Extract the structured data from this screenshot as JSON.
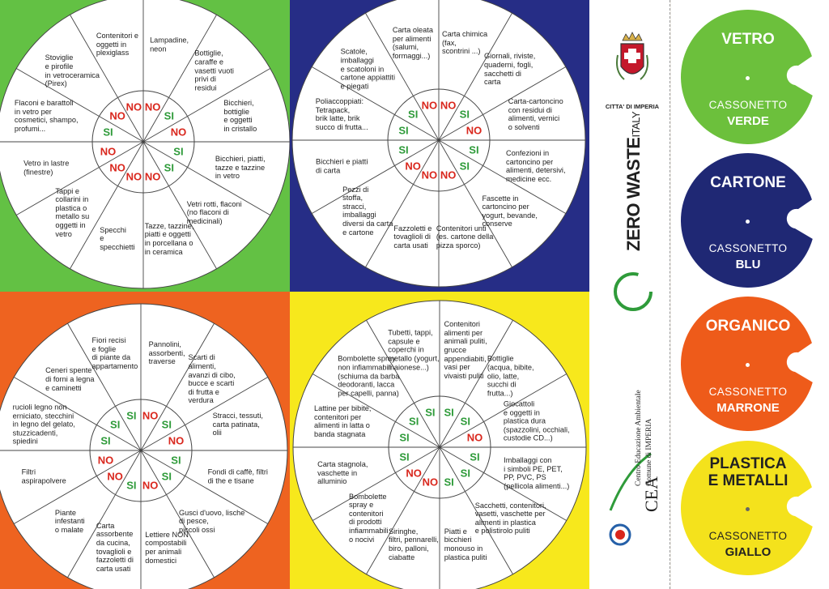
{
  "wheels": [
    {
      "id": "green",
      "color": "#63c144",
      "sectors": [
        {
          "text": "Lampadine,\nneon",
          "sign": "NO"
        },
        {
          "text": "Bottiglie,\ncaraffe e\nvasetti vuoti\nprivi di\nresidui",
          "sign": "SI"
        },
        {
          "text": "Bicchieri,\nbottiglie\ne oggetti\nin cristallo",
          "sign": "NO"
        },
        {
          "text": "Bicchieri, piatti,\ntazze e tazzine\nin vetro",
          "sign": "SI"
        },
        {
          "text": "Vetri rotti, flaconi\n(no flaconi di\nmedicinali)",
          "sign": "SI"
        },
        {
          "text": "Tazze, tazzine,\npiatti e oggetti\nin porcellana o\nin ceramica",
          "sign": "NO"
        },
        {
          "text": "Specchi\ne\nspecchietti",
          "sign": "NO"
        },
        {
          "text": "Tappi e\ncollarini in\nplastica o\nmetallo su\noggetti in\nvetro",
          "sign": "NO"
        },
        {
          "text": "Vetro in lastre\n(finestre)",
          "sign": "NO"
        },
        {
          "text": "Flaconi e barattoli\nin vetro per\ncosmetici, shampo,\nprofumi...",
          "sign": "SI"
        },
        {
          "text": "Stoviglie\ne pirofile\nin vetroceramica\n(Pirex)",
          "sign": "NO"
        },
        {
          "text": "Contenitori e\noggetti in\nplexiglass",
          "sign": "NO"
        }
      ]
    },
    {
      "id": "blue",
      "color": "#262d86",
      "sectors": [
        {
          "text": "Carta chimica\n(fax,\nscontrini ...)",
          "sign": "NO"
        },
        {
          "text": "Giornali, riviste,\nquaderni, fogli,\nsacchetti di\ncarta",
          "sign": "SI"
        },
        {
          "text": "Carta-cartoncino\ncon residui di\nalimenti, vernici\no solventi",
          "sign": "NO"
        },
        {
          "text": "Confezioni in\ncartoncino per\nalimenti, detersivi,\nmedicine ecc.",
          "sign": "SI"
        },
        {
          "text": "Fascette in\ncartoncino per\nyogurt, bevande,\nconserve",
          "sign": "SI"
        },
        {
          "text": "Contenitori unti\n(es. cartone della\npizza sporco)",
          "sign": "NO"
        },
        {
          "text": "Fazzoletti e\ntovaglioli di\ncarta usati",
          "sign": "NO"
        },
        {
          "text": "Pezzi di\nstoffa,\nstracci,\nimballaggi\ndiversi da carta\ne cartone",
          "sign": "NO"
        },
        {
          "text": "Bicchieri e piatti\ndi carta",
          "sign": "SI"
        },
        {
          "text": "Poliaccoppiati:\nTetrapack,\nbrik latte, brik\nsucco di frutta...",
          "sign": "SI"
        },
        {
          "text": "Scatole,\nimballaggi\ne scatoloni in\ncartone appiattiti\ne piegati",
          "sign": "SI"
        },
        {
          "text": "Carta oleata\nper alimenti\n(salumi,\nformaggi...)",
          "sign": "NO"
        }
      ]
    },
    {
      "id": "orange",
      "color": "#ee6320",
      "sectors": [
        {
          "text": "Pannolini,\nassorbenti,\ntraverse",
          "sign": "NO"
        },
        {
          "text": "Scarti di\nalimenti,\navanzi di cibo,\nbucce e scarti\ndi frutta e\nverdura",
          "sign": "SI"
        },
        {
          "text": "Stracci, tessuti,\ncarta patinata,\nolii",
          "sign": "NO"
        },
        {
          "text": "Fondi di caffè, filtri\ndi the e tisane",
          "sign": "SI"
        },
        {
          "text": "Gusci d'uovo, lische\ndi pesce,\npiccoli ossi",
          "sign": "SI"
        },
        {
          "text": "Lettiere NON\ncompostabili\nper animali\ndomestici",
          "sign": "NO"
        },
        {
          "text": "Carta\nassorbente\nda cucina,\ntovaglioli e\nfazzoletti di\ncarta usati",
          "sign": "SI"
        },
        {
          "text": "Piante\ninfestanti\no malate",
          "sign": "NO"
        },
        {
          "text": "Filtri\naspirapolvere",
          "sign": "NO"
        },
        {
          "text": "rucioli legno non\nerniciato, stecchini\nin legno del gelato,\nstuzzicadenti,\nspiedini",
          "sign": "SI"
        },
        {
          "text": "Ceneri spente\ndi forni a legna\ne caminetti",
          "sign": "SI"
        },
        {
          "text": "Fiori recisi\ne foglie\ndi piante da\nappartamento",
          "sign": "SI"
        }
      ]
    },
    {
      "id": "yellow",
      "color": "#f7e81c",
      "sectors": [
        {
          "text": "Contenitori\nalimenti per\nanimali puliti,\ngrucce\nappendiabiti,\nvasi per\nvivaisti puliti",
          "sign": "SI"
        },
        {
          "text": "Bottiglie\n(acqua, bibite,\nolio, latte,\nsucchi di\nfrutta...)",
          "sign": "SI"
        },
        {
          "text": "Giocattoli\ne oggetti in\nplastica dura\n(spazzolini, occhiali,\ncustodie CD...)",
          "sign": "NO"
        },
        {
          "text": "Imballaggi con\ni simboli PE, PET,\nPP, PVC, PS\n(pellicola alimenti...)",
          "sign": "SI"
        },
        {
          "text": "Sacchetti, contenitori,\nvasetti, vaschette per\nalimenti in plastica\ne polistirolo puliti",
          "sign": "SI"
        },
        {
          "text": "Piatti e\nbicchieri\nmonouso in\nplastica puliti",
          "sign": "SI"
        },
        {
          "text": "Siringhe,\nfiltri, pennarelli,\nbiro, palloni,\nciabatte",
          "sign": "NO"
        },
        {
          "text": "Bombolette\nspray e\ncontenitori\ndi prodotti\ninfiammabili\no nocivi",
          "sign": "NO"
        },
        {
          "text": "Carta stagnola,\nvaschette in\nalluminio",
          "sign": "SI"
        },
        {
          "text": "Lattine per bibite,\ncontenitori per\nalimenti in latta o\nbanda stagnata",
          "sign": "SI"
        },
        {
          "text": "Bombolette spray\nnon infiammabili\n(schiuma da barba\ndeodoranti, lacca\nper capelli, panna)",
          "sign": "SI"
        },
        {
          "text": "Tubetti, tappi,\ncapsule e\ncoperchi in\nmetallo (yogurt,\nmaionese...)",
          "sign": "SI"
        }
      ]
    }
  ],
  "guide": {
    "city": "CITTA' DI IMPERIA",
    "zerowaste": "ZERO WASTE",
    "zerowaste_suffix": "ITALY",
    "cea": "CEA",
    "cea_line1": "Centro Educazione Ambientale",
    "cea_line2": "Comune di IMPERIA"
  },
  "bins": [
    {
      "name": "VETRO",
      "sub": "CASSONETTO",
      "color_name": "VERDE",
      "color": "#6cc03c"
    },
    {
      "name": "CARTONE",
      "sub": "CASSONETTO",
      "color_name": "BLU",
      "color": "#1f2874"
    },
    {
      "name": "ORGANICO",
      "sub": "CASSONETTO",
      "color_name": "MARRONE",
      "color": "#ee5b1a"
    },
    {
      "name": "PLASTICA\nE METALLI",
      "sub": "CASSONETTO",
      "color_name": "GIALLO",
      "color": "#f4e21c"
    }
  ],
  "colors": {
    "si": "#2f9b3a",
    "no": "#d9261c"
  }
}
